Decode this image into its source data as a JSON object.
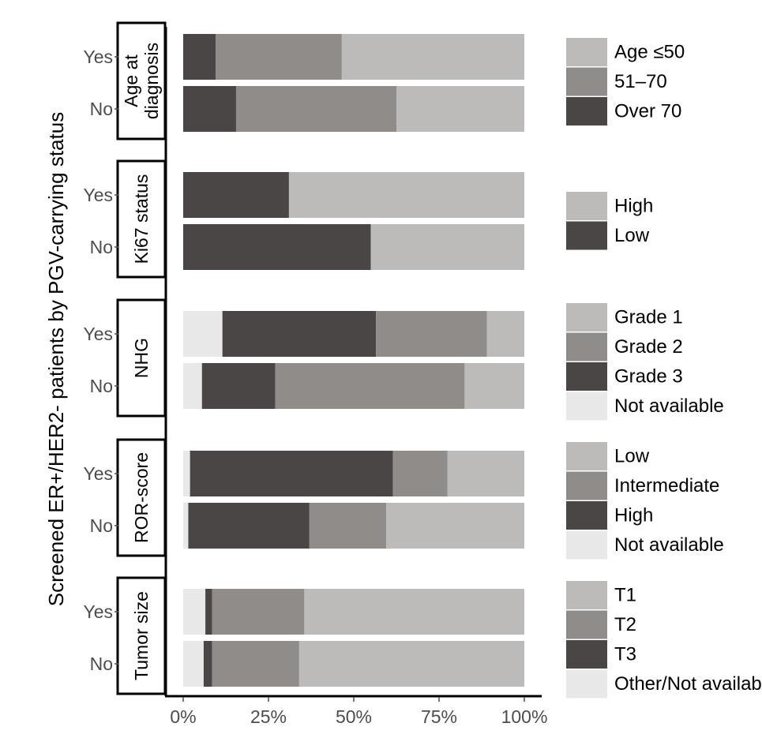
{
  "colors": {
    "light": "#bcbbba",
    "mid": "#8f8c8a",
    "dark": "#4a4645",
    "na": "#e8e8e8",
    "axis": "#000000",
    "tick_text": "#4d4d4d"
  },
  "chart_data": {
    "type": "bar",
    "orientation": "horizontal",
    "stacked": true,
    "percent": true,
    "ylabel": "Screened ER+/HER2- patients by PGV-carrying status",
    "xlim": [
      0,
      100
    ],
    "x_ticks": [
      0,
      25,
      50,
      75,
      100
    ],
    "x_tick_labels": [
      "0%",
      "25%",
      "50%",
      "75%",
      "100%"
    ],
    "panels": [
      {
        "title": "Age at diagnosis",
        "title_lines": [
          "Age at",
          "diagnosis"
        ],
        "rows": [
          {
            "label": "Yes",
            "segments": [
              {
                "category": "Over 70",
                "color": "dark",
                "value": 9.5
              },
              {
                "category": "51–70",
                "color": "mid",
                "value": 37
              },
              {
                "category": "Age ≤50",
                "color": "light",
                "value": 53.5
              }
            ]
          },
          {
            "label": "No",
            "segments": [
              {
                "category": "Over 70",
                "color": "dark",
                "value": 15.5
              },
              {
                "category": "51–70",
                "color": "mid",
                "value": 47
              },
              {
                "category": "Age ≤50",
                "color": "light",
                "value": 37.5
              }
            ]
          }
        ],
        "legend": [
          {
            "label": "Age ≤50",
            "color": "light"
          },
          {
            "label": "51–70",
            "color": "mid"
          },
          {
            "label": "Over 70",
            "color": "dark"
          }
        ]
      },
      {
        "title": "Ki67 status",
        "title_lines": [
          "Ki67 status"
        ],
        "rows": [
          {
            "label": "Yes",
            "segments": [
              {
                "category": "Low",
                "color": "dark",
                "value": 31
              },
              {
                "category": "High",
                "color": "light",
                "value": 69
              }
            ]
          },
          {
            "label": "No",
            "segments": [
              {
                "category": "Low",
                "color": "dark",
                "value": 55
              },
              {
                "category": "High",
                "color": "light",
                "value": 45
              }
            ]
          }
        ],
        "legend": [
          {
            "label": "High",
            "color": "light"
          },
          {
            "label": "Low",
            "color": "dark"
          }
        ]
      },
      {
        "title": "NHG",
        "title_lines": [
          "NHG"
        ],
        "rows": [
          {
            "label": "Yes",
            "segments": [
              {
                "category": "Not available",
                "color": "na",
                "value": 11.5
              },
              {
                "category": "Grade 3",
                "color": "dark",
                "value": 45
              },
              {
                "category": "Grade 2",
                "color": "mid",
                "value": 32.5
              },
              {
                "category": "Grade 1",
                "color": "light",
                "value": 11
              }
            ]
          },
          {
            "label": "No",
            "segments": [
              {
                "category": "Not available",
                "color": "na",
                "value": 5.5
              },
              {
                "category": "Grade 3",
                "color": "dark",
                "value": 21.5
              },
              {
                "category": "Grade 2",
                "color": "mid",
                "value": 55.5
              },
              {
                "category": "Grade 1",
                "color": "light",
                "value": 17.5
              }
            ]
          }
        ],
        "legend": [
          {
            "label": "Grade 1",
            "color": "light"
          },
          {
            "label": "Grade 2",
            "color": "mid"
          },
          {
            "label": "Grade 3",
            "color": "dark"
          },
          {
            "label": "Not available",
            "color": "na"
          }
        ]
      },
      {
        "title": "ROR-score",
        "title_lines": [
          "ROR-score"
        ],
        "rows": [
          {
            "label": "Yes",
            "segments": [
              {
                "category": "Not available",
                "color": "na",
                "value": 2
              },
              {
                "category": "High",
                "color": "dark",
                "value": 59.5
              },
              {
                "category": "Intermediate",
                "color": "mid",
                "value": 16
              },
              {
                "category": "Low",
                "color": "light",
                "value": 22.5
              }
            ]
          },
          {
            "label": "No",
            "segments": [
              {
                "category": "Not available",
                "color": "na",
                "value": 1.5
              },
              {
                "category": "High",
                "color": "dark",
                "value": 35.5
              },
              {
                "category": "Intermediate",
                "color": "mid",
                "value": 22.5
              },
              {
                "category": "Low",
                "color": "light",
                "value": 40.5
              }
            ]
          }
        ],
        "legend": [
          {
            "label": "Low",
            "color": "light"
          },
          {
            "label": "Intermediate",
            "color": "mid"
          },
          {
            "label": "High",
            "color": "dark"
          },
          {
            "label": "Not available",
            "color": "na"
          }
        ]
      },
      {
        "title": "Tumor size",
        "title_lines": [
          "Tumor size"
        ],
        "rows": [
          {
            "label": "Yes",
            "segments": [
              {
                "category": "Other/Not available",
                "color": "na",
                "value": 6.5
              },
              {
                "category": "T3",
                "color": "dark",
                "value": 2
              },
              {
                "category": "T2",
                "color": "mid",
                "value": 27
              },
              {
                "category": "T1",
                "color": "light",
                "value": 64.5
              }
            ]
          },
          {
            "label": "No",
            "segments": [
              {
                "category": "Other/Not available",
                "color": "na",
                "value": 6
              },
              {
                "category": "T3",
                "color": "dark",
                "value": 2.5
              },
              {
                "category": "T2",
                "color": "mid",
                "value": 25.5
              },
              {
                "category": "T1",
                "color": "light",
                "value": 66
              }
            ]
          }
        ],
        "legend": [
          {
            "label": "T1",
            "color": "light"
          },
          {
            "label": "T2",
            "color": "mid"
          },
          {
            "label": "T3",
            "color": "dark"
          },
          {
            "label": "Other/Not available",
            "color": "na"
          }
        ]
      }
    ]
  }
}
